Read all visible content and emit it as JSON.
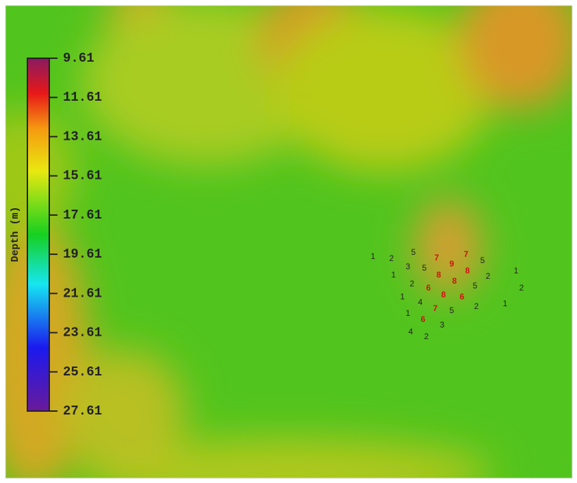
{
  "colorbar": {
    "label": "Depth (m)",
    "lim": [
      9.61,
      27.61
    ],
    "ticks": [
      9.61,
      11.61,
      13.61,
      15.61,
      17.61,
      19.61,
      21.61,
      23.61,
      25.61,
      27.61
    ]
  },
  "labels": [
    1,
    2,
    5,
    1,
    3,
    5,
    7,
    9,
    7,
    5,
    8,
    8,
    8,
    2,
    1,
    2,
    2,
    6,
    8,
    6,
    5,
    2,
    1,
    1,
    4,
    7,
    5,
    1,
    6,
    3,
    4,
    2
  ]
}
